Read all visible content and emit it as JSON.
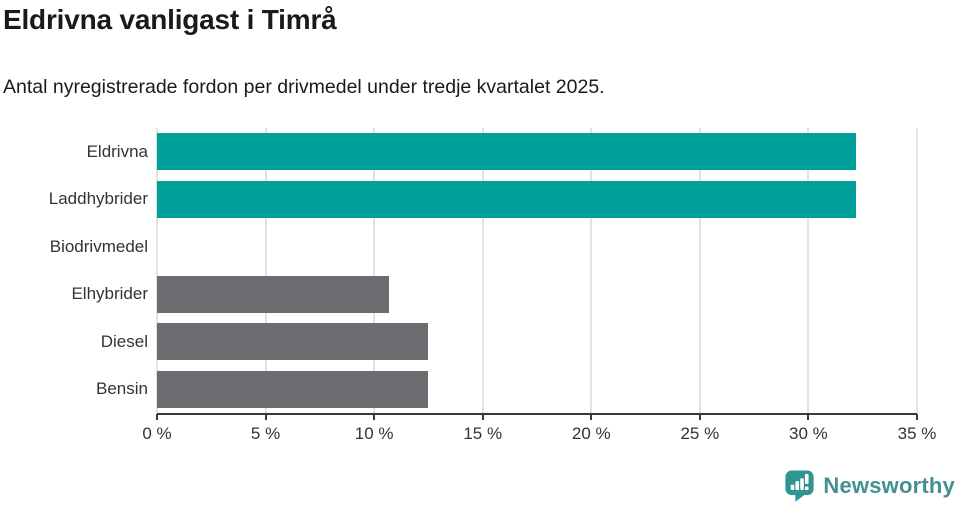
{
  "header": {
    "title": "Eldrivna vanligast i Timrå",
    "subtitle": "Antal nyregistrerade fordon per drivmedel under tredje kvartalet 2025."
  },
  "chart_data": {
    "type": "bar",
    "orientation": "horizontal",
    "title": "Eldrivna vanligast i Timrå",
    "subtitle": "Antal nyregistrerade fordon per drivmedel under tredje kvartalet 2025.",
    "categories": [
      "Eldrivna",
      "Laddhybrider",
      "Biodrivmedel",
      "Elhybrider",
      "Diesel",
      "Bensin"
    ],
    "values": [
      32.2,
      32.2,
      0,
      10.7,
      12.5,
      12.5
    ],
    "unit": "%",
    "xlim": [
      0,
      35
    ],
    "xticks": [
      0,
      5,
      10,
      15,
      20,
      25,
      30,
      35
    ],
    "xtick_labels": [
      "0 %",
      "5 %",
      "10 %",
      "15 %",
      "20 %",
      "25 %",
      "30 %",
      "35 %"
    ],
    "bar_colors": [
      "#00a09b",
      "#00a09b",
      "#6c6c70",
      "#6c6c70",
      "#6c6c70",
      "#6c6c70"
    ],
    "grid": true,
    "legend": null,
    "xlabel": "",
    "ylabel": ""
  },
  "footer": {
    "brand": "Newsworthy"
  },
  "colors": {
    "title": "#1a1a1a",
    "text": "#333333",
    "axis": "#3a3a3a",
    "grid": "#e2e2e2",
    "highlight": "#00a09b",
    "neutral": "#6c6c70",
    "brand": "#43908e",
    "brand-icon": "#2f9492"
  }
}
